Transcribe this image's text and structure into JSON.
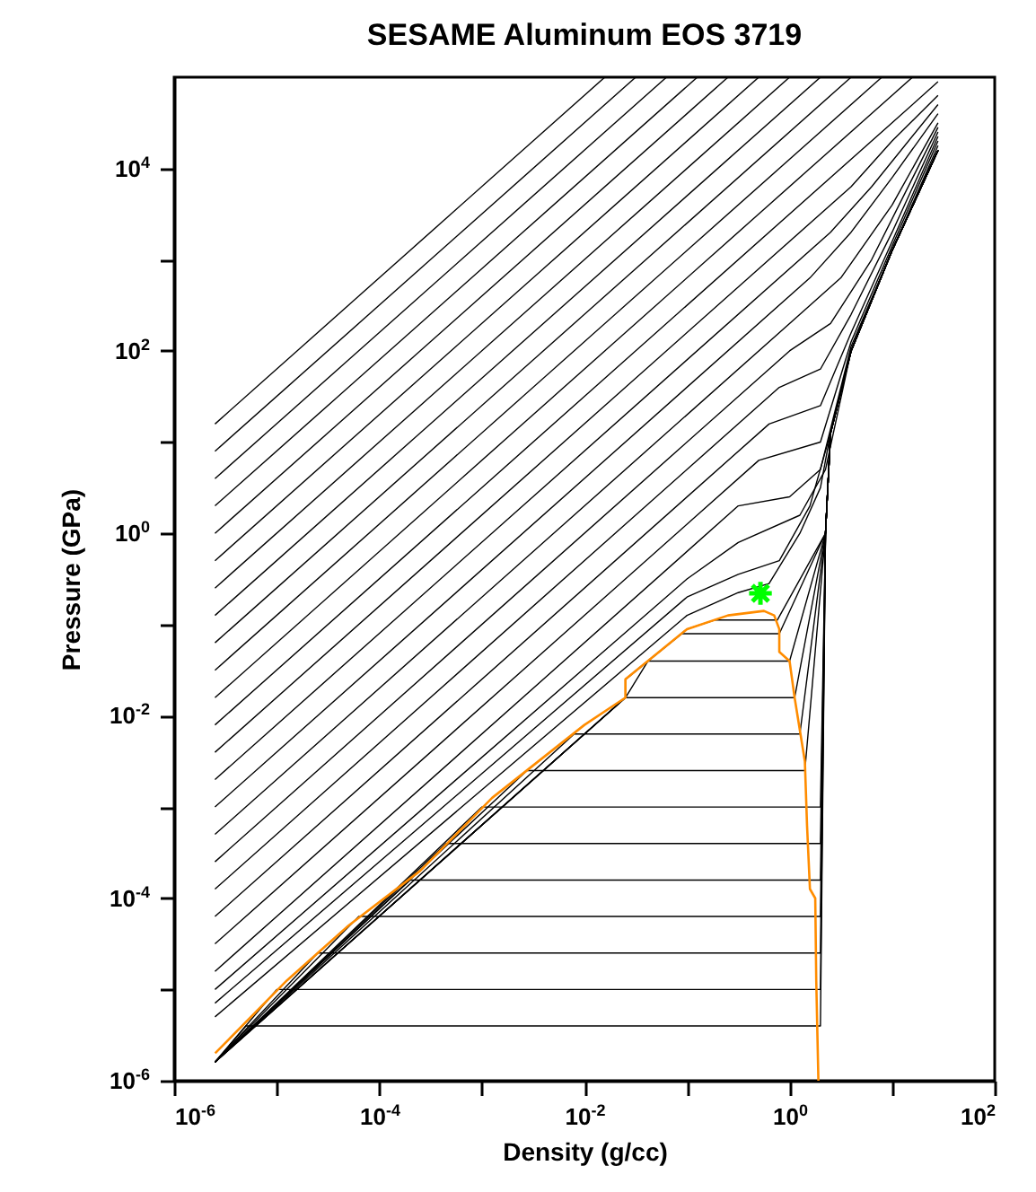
{
  "chart_data": {
    "type": "line",
    "title": "SESAME Aluminum EOS 3719",
    "xlabel": "Density (g/cc)",
    "ylabel": "Pressure (GPa)",
    "log": "xy",
    "xlim": [
      1e-06,
      100
    ],
    "ylim": [
      1e-06,
      100000.0
    ],
    "xticks": [
      {
        "value": 1e-06,
        "label": "10$^{-6}$"
      },
      {
        "value": 1e-05,
        "label": null
      },
      {
        "value": 0.0001,
        "label": "10$^{-4}$"
      },
      {
        "value": 0.001,
        "label": null
      },
      {
        "value": 0.01,
        "label": "10$^{-2}$"
      },
      {
        "value": 0.1,
        "label": null
      },
      {
        "value": 1,
        "label": "10$^{0}$"
      },
      {
        "value": 10,
        "label": null
      },
      {
        "value": 100,
        "label": "10$^{2}$"
      }
    ],
    "yticks": [
      {
        "value": 1e-06,
        "label": "10$^{-6}$"
      },
      {
        "value": 1e-05,
        "label": null
      },
      {
        "value": 0.0001,
        "label": "10$^{-4}$"
      },
      {
        "value": 0.001,
        "label": null
      },
      {
        "value": 0.01,
        "label": "10$^{-2}$"
      },
      {
        "value": 0.1,
        "label": null
      },
      {
        "value": 1,
        "label": "10$^{0}$"
      },
      {
        "value": 10,
        "label": null
      },
      {
        "value": 100,
        "label": "10$^{2}$"
      },
      {
        "value": 1000,
        "label": null
      },
      {
        "value": 10000,
        "label": "10$^{4}$"
      }
    ],
    "series": [
      {
        "color": "#000000",
        "x": [
          2.5e-06,
          0.0158
        ],
        "values": [
          15.8,
          100000.0
        ]
      },
      {
        "color": "#000000",
        "x": [
          2.5e-06,
          0.0316
        ],
        "values": [
          7.94,
          100000.0
        ]
      },
      {
        "color": "#000000",
        "x": [
          2.5e-06,
          0.0631
        ],
        "values": [
          3.98,
          100000.0
        ]
      },
      {
        "color": "#000000",
        "x": [
          2.5e-06,
          0.126
        ],
        "values": [
          2.0,
          100000.0
        ]
      },
      {
        "color": "#000000",
        "x": [
          2.5e-06,
          0.251
        ],
        "values": [
          1.0,
          100000.0
        ]
      },
      {
        "color": "#000000",
        "x": [
          2.5e-06,
          0.501
        ],
        "values": [
          0.501,
          100000.0
        ]
      },
      {
        "color": "#000000",
        "x": [
          2.5e-06,
          1.0
        ],
        "values": [
          0.251,
          100000.0
        ]
      },
      {
        "color": "#000000",
        "x": [
          2.5e-06,
          2.0
        ],
        "values": [
          0.126,
          100000.0
        ]
      },
      {
        "color": "#000000",
        "x": [
          2.5e-06,
          3.98
        ],
        "values": [
          0.0631,
          100000.0
        ]
      },
      {
        "color": "#000000",
        "x": [
          2.5e-06,
          7.94
        ],
        "values": [
          0.0316,
          100000.0
        ]
      },
      {
        "color": "#000000",
        "x": [
          2.5e-06,
          15.8
        ],
        "values": [
          0.0158,
          100000.0
        ]
      },
      {
        "color": "#000000",
        "x": [
          2.5e-06,
          10,
          28
        ],
        "values": [
          0.00794,
          31600,
          89100
        ]
      },
      {
        "color": "#000000",
        "x": [
          2.5e-06,
          3.98,
          10,
          28
        ],
        "values": [
          0.00398,
          6310,
          20000,
          63100
        ]
      },
      {
        "color": "#000000",
        "x": [
          2.5e-06,
          2.51,
          6.31,
          28
        ],
        "values": [
          0.002,
          2000,
          6310,
          50100
        ]
      },
      {
        "color": "#000000",
        "x": [
          2.5e-06,
          1.58,
          3.98,
          10,
          28
        ],
        "values": [
          0.001,
          631,
          2000,
          7940,
          39800
        ]
      },
      {
        "color": "#000000",
        "x": [
          2.5e-06,
          1.26,
          3.16,
          10,
          28
        ],
        "values": [
          0.000501,
          251,
          631,
          3980,
          31600
        ]
      },
      {
        "color": "#000000",
        "x": [
          2.5e-06,
          1,
          2.51,
          6.31,
          28
        ],
        "values": [
          0.000251,
          100,
          200,
          1000,
          28200
        ]
      },
      {
        "color": "#000000",
        "x": [
          2.5e-06,
          0.794,
          2,
          3.98,
          10,
          28
        ],
        "values": [
          0.000126,
          39.8,
          63.1,
          251,
          2000,
          25100
        ]
      },
      {
        "color": "#000000",
        "x": [
          2.5e-06,
          0.631,
          2,
          3.98,
          10,
          28
        ],
        "values": [
          6.31e-05,
          15.8,
          25.1,
          158,
          1580,
          22400
        ]
      },
      {
        "color": "#000000",
        "x": [
          2.5e-06,
          0.501,
          2,
          3.98,
          10,
          28
        ],
        "values": [
          3.16e-05,
          6.31,
          10,
          126,
          1410,
          20000
        ]
      },
      {
        "color": "#000000",
        "x": [
          2.5e-06,
          0.316,
          1,
          2,
          3.98,
          10,
          28
        ],
        "values": [
          1.58e-05,
          2.0,
          2.51,
          5.01,
          112,
          1260,
          17800
        ]
      },
      {
        "color": "#000000",
        "x": [
          2.5e-06,
          0.1,
          0.316,
          1.26,
          2.24,
          3.98,
          10,
          28
        ],
        "values": [
          1e-05,
          0.316,
          0.794,
          1.58,
          5.01,
          100,
          1260,
          15800
        ]
      },
      {
        "color": "#000000",
        "x": [
          2.5e-06,
          0.1,
          0.316,
          0.794,
          1.58,
          2.51,
          3.98,
          10,
          28
        ],
        "values": [
          7.08e-06,
          0.2,
          0.355,
          0.501,
          2.0,
          12.6,
          100,
          1260,
          15800
        ]
      },
      {
        "color": "#000000",
        "x": [
          2.5e-06,
          0.1,
          0.316,
          0.631,
          1.26,
          2,
          2.51,
          3.98,
          10,
          28
        ],
        "values": [
          5.01e-06,
          0.126,
          0.224,
          0.282,
          1,
          3.16,
          12.6,
          100,
          1260,
          15800
        ]
      },
      {
        "color": "#000000",
        "x": [
          2.5e-06,
          5.01e-06,
          2.0,
          2.24,
          2.51,
          3.98,
          10,
          28
        ],
        "values": [
          1.6e-06,
          3.98e-06,
          3.98e-06,
          1,
          12.6,
          100,
          1260,
          15800
        ]
      },
      {
        "color": "#000000",
        "x": [
          2.5e-06,
          1e-05,
          2.0,
          2.24,
          2.51,
          3.98,
          10,
          28
        ],
        "values": [
          1.6e-06,
          1e-05,
          1e-05,
          1,
          12.6,
          100,
          1260,
          15800
        ]
      },
      {
        "color": "#000000",
        "x": [
          2.5e-06,
          2.51e-05,
          2.0,
          2.24,
          2.51,
          3.98,
          10,
          28
        ],
        "values": [
          1.6e-06,
          2.51e-05,
          2.51e-05,
          1,
          12.6,
          100,
          1260,
          15800
        ]
      },
      {
        "color": "#000000",
        "x": [
          2.5e-06,
          6.31e-05,
          2.0,
          2.24,
          2.51,
          3.98,
          10,
          28
        ],
        "values": [
          1.6e-06,
          6.31e-05,
          6.31e-05,
          1,
          12.6,
          100,
          1260,
          15800
        ]
      },
      {
        "color": "#000000",
        "x": [
          2.5e-06,
          0.0002,
          2.0,
          2.24,
          2.51,
          3.98,
          10,
          28
        ],
        "values": [
          1.6e-06,
          0.000158,
          0.000158,
          1,
          12.6,
          100,
          1260,
          15800
        ]
      },
      {
        "color": "#000000",
        "x": [
          2.5e-06,
          0.000447,
          2.0,
          2.24,
          2.51,
          3.98,
          10,
          28
        ],
        "values": [
          1.6e-06,
          0.000398,
          0.000398,
          1,
          12.6,
          100,
          1260,
          15800
        ]
      },
      {
        "color": "#000000",
        "x": [
          2.5e-06,
          0.001,
          2.0,
          2.24,
          2.51,
          3.98,
          10,
          28
        ],
        "values": [
          1.6e-06,
          0.001,
          0.001,
          1,
          12.6,
          100,
          1260,
          15800
        ]
      },
      {
        "color": "#000000",
        "x": [
          2.5e-06,
          0.00275,
          1.41,
          2.24,
          2.51,
          3.98,
          10,
          28
        ],
        "values": [
          1.6e-06,
          0.00251,
          0.00251,
          1,
          12.6,
          100,
          1260,
          15800
        ]
      },
      {
        "color": "#000000",
        "x": [
          2.5e-06,
          0.00794,
          1.26,
          2.24,
          2.51,
          3.98,
          10,
          28
        ],
        "values": [
          1.6e-06,
          0.00631,
          0.00631,
          1,
          12.6,
          100,
          1260,
          15800
        ]
      },
      {
        "color": "#000000",
        "x": [
          2.5e-06,
          0.0251,
          1.12,
          2.24,
          2.51,
          3.98,
          10,
          28
        ],
        "values": [
          1.6e-06,
          0.0158,
          0.0158,
          1,
          12.6,
          100,
          1260,
          15800
        ]
      },
      {
        "color": "#000000",
        "x": [
          2.5e-06,
          0.0251,
          0.0417,
          1,
          2.24,
          2.51,
          3.98,
          10,
          28
        ],
        "values": [
          1.6e-06,
          0.0158,
          0.0398,
          0.0398,
          1,
          12.6,
          100,
          1260,
          15800
        ]
      },
      {
        "color": "#000000",
        "x": [
          2.5e-06,
          0.0251,
          0.0251,
          0.0891,
          0.794,
          2.24,
          2.51,
          3.98,
          10,
          28
        ],
        "values": [
          1.6e-06,
          0.0158,
          0.0251,
          0.0794,
          0.0794,
          1,
          12.6,
          100,
          1260,
          15800
        ]
      },
      {
        "color": "#000000",
        "x": [
          2.5e-06,
          0.0251,
          0.0251,
          0.1,
          0.186,
          0.759,
          2.24,
          2.51,
          3.98,
          10,
          28
        ],
        "values": [
          1.6e-06,
          0.0158,
          0.0251,
          0.0891,
          0.112,
          0.112,
          1,
          12.6,
          100,
          1260,
          15800
        ]
      },
      {
        "color": "#ff8c00",
        "x": [
          2.51e-06,
          1.26e-05,
          5.01e-05,
          0.000251,
          0.00126,
          0.01,
          0.0251,
          0.0251,
          0.1,
          0.251,
          0.562,
          0.708,
          0.794,
          0.794,
          1,
          1.12,
          1.41,
          1.48,
          1.58,
          1.78,
          1.82,
          1.91
        ],
        "values": [
          2e-06,
          1.26e-05,
          5.01e-05,
          0.0002,
          0.00126,
          0.00794,
          0.0158,
          0.0251,
          0.0891,
          0.126,
          0.141,
          0.126,
          0.0891,
          0.0501,
          0.0398,
          0.0158,
          0.00316,
          0.000631,
          0.000126,
          0.0001,
          1.26e-05,
          1e-06
        ]
      },
      {
        "type": "scatter",
        "marker": "cross",
        "color": "#00ff00",
        "x": [
          0.52
        ],
        "values": [
          0.22
        ]
      }
    ]
  }
}
